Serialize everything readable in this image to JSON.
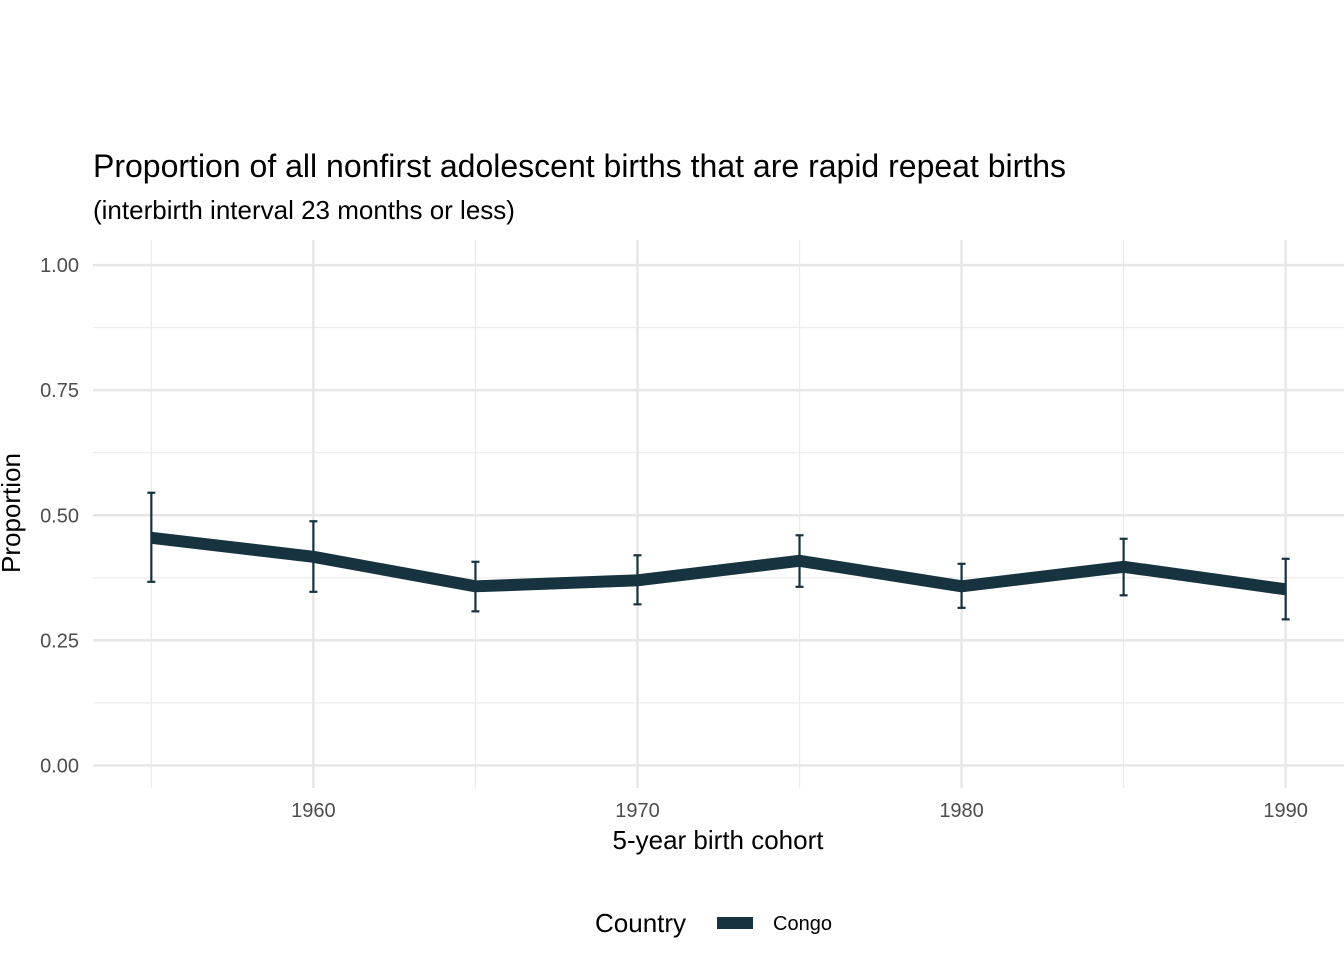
{
  "chart_data": {
    "type": "line",
    "title": "Proportion of all nonfirst adolescent births that are rapid repeat births",
    "subtitle": "(interbirth interval 23 months or less)",
    "xlabel": "5-year birth cohort",
    "ylabel": "Proportion",
    "x_ticks": [
      "1960",
      "1970",
      "1980",
      "1990"
    ],
    "y_ticks": [
      "0.00",
      "0.25",
      "0.50",
      "0.75",
      "1.00"
    ],
    "xlim": [
      1953.2,
      1991.8
    ],
    "ylim": [
      -0.045,
      1.05
    ],
    "grid": true,
    "legend": {
      "title": "Country",
      "position": "bottom"
    },
    "series": [
      {
        "name": "Congo",
        "color": "#17333f",
        "x": [
          1955,
          1960,
          1965,
          1970,
          1975,
          1980,
          1985,
          1990
        ],
        "y": [
          0.455,
          0.417,
          0.358,
          0.37,
          0.409,
          0.358,
          0.397,
          0.352
        ],
        "lower": [
          0.367,
          0.347,
          0.308,
          0.322,
          0.357,
          0.315,
          0.34,
          0.292
        ],
        "upper": [
          0.545,
          0.488,
          0.407,
          0.42,
          0.46,
          0.403,
          0.453,
          0.413
        ]
      }
    ]
  }
}
